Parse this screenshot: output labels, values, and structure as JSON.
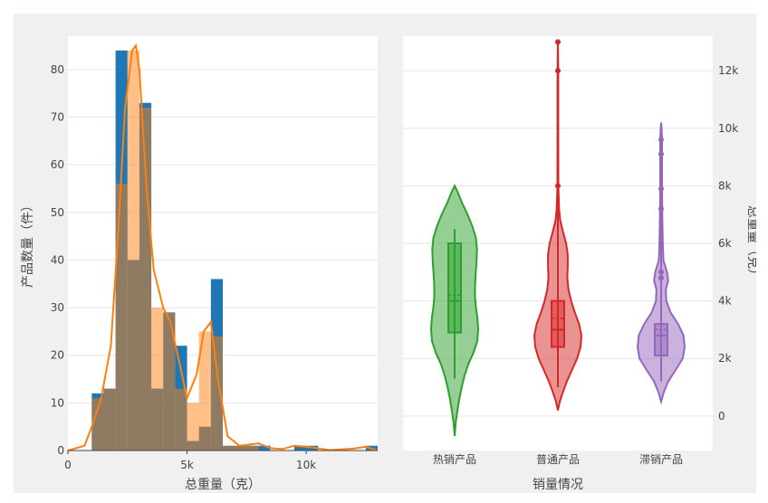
{
  "chart_data": [
    {
      "type": "bar",
      "subtype": "histogram-with-kde",
      "xlabel": "总重量（克）",
      "ylabel": "产品数量（件）",
      "xlim": [
        0,
        13000
      ],
      "ylim": [
        0,
        87
      ],
      "x_ticks": [
        {
          "v": 0,
          "label": "0"
        },
        {
          "v": 5000,
          "label": "5k"
        },
        {
          "v": 10000,
          "label": "10k"
        }
      ],
      "y_ticks": [
        0,
        10,
        20,
        30,
        40,
        50,
        60,
        70,
        80
      ],
      "bin_width": 500,
      "series": [
        {
          "color": "#1f77b4",
          "bins": [
            {
              "x0": 1000,
              "x1": 1500,
              "count": 12
            },
            {
              "x0": 1500,
              "x1": 2000,
              "count": 13
            },
            {
              "x0": 2000,
              "x1": 2500,
              "count": 84
            },
            {
              "x0": 2500,
              "x1": 3000,
              "count": 40
            },
            {
              "x0": 3000,
              "x1": 3500,
              "count": 73
            },
            {
              "x0": 3500,
              "x1": 4000,
              "count": 13
            },
            {
              "x0": 4000,
              "x1": 4500,
              "count": 29
            },
            {
              "x0": 4500,
              "x1": 5000,
              "count": 22
            },
            {
              "x0": 5000,
              "x1": 5500,
              "count": 2
            },
            {
              "x0": 5500,
              "x1": 6000,
              "count": 5
            },
            {
              "x0": 6000,
              "x1": 6500,
              "count": 36
            },
            {
              "x0": 6500,
              "x1": 7000,
              "count": 1
            },
            {
              "x0": 7000,
              "x1": 7500,
              "count": 1
            },
            {
              "x0": 7500,
              "x1": 8000,
              "count": 1
            },
            {
              "x0": 8000,
              "x1": 8500,
              "count": 1
            },
            {
              "x0": 9500,
              "x1": 10000,
              "count": 1
            },
            {
              "x0": 10000,
              "x1": 10500,
              "count": 1
            },
            {
              "x0": 12500,
              "x1": 13000,
              "count": 1
            }
          ]
        },
        {
          "color": "#ff7f0e",
          "bins": [
            {
              "x0": 1000,
              "x1": 1500,
              "count": 11
            },
            {
              "x0": 1500,
              "x1": 2000,
              "count": 13
            },
            {
              "x0": 2000,
              "x1": 2500,
              "count": 56
            },
            {
              "x0": 2500,
              "x1": 3000,
              "count": 84
            },
            {
              "x0": 3000,
              "x1": 3500,
              "count": 72
            },
            {
              "x0": 3500,
              "x1": 4000,
              "count": 30
            },
            {
              "x0": 4000,
              "x1": 4500,
              "count": 29
            },
            {
              "x0": 4500,
              "x1": 5000,
              "count": 13
            },
            {
              "x0": 5000,
              "x1": 5500,
              "count": 10
            },
            {
              "x0": 5500,
              "x1": 6000,
              "count": 25
            },
            {
              "x0": 6000,
              "x1": 6500,
              "count": 24
            },
            {
              "x0": 6500,
              "x1": 7000,
              "count": 1
            },
            {
              "x0": 7000,
              "x1": 7500,
              "count": 1
            },
            {
              "x0": 7500,
              "x1": 8000,
              "count": 1
            }
          ],
          "kde": [
            [
              0,
              0
            ],
            [
              700,
              1
            ],
            [
              1000,
              5
            ],
            [
              1400,
              11
            ],
            [
              1800,
              22
            ],
            [
              2100,
              45
            ],
            [
              2400,
              72
            ],
            [
              2700,
              84
            ],
            [
              2850,
              85
            ],
            [
              3000,
              80
            ],
            [
              3300,
              55
            ],
            [
              3600,
              38
            ],
            [
              4000,
              30
            ],
            [
              4300,
              27
            ],
            [
              4700,
              18
            ],
            [
              5000,
              11
            ],
            [
              5400,
              16
            ],
            [
              5700,
              25
            ],
            [
              6000,
              27
            ],
            [
              6300,
              15
            ],
            [
              6700,
              3
            ],
            [
              7200,
              1
            ],
            [
              8000,
              1.5
            ],
            [
              8500,
              0.5
            ],
            [
              9000,
              0.3
            ],
            [
              9500,
              1
            ],
            [
              10000,
              0.8
            ],
            [
              11000,
              0.1
            ],
            [
              12000,
              0.4
            ],
            [
              12500,
              0.8
            ],
            [
              12800,
              0.3
            ],
            [
              13000,
              0
            ]
          ]
        }
      ]
    },
    {
      "type": "violin",
      "xlabel": "销量情况",
      "ylabel": "总重量（克）",
      "ylim": [
        -1200,
        13200
      ],
      "y_ticks": [
        {
          "v": 0,
          "label": "0"
        },
        {
          "v": 2000,
          "label": "2k"
        },
        {
          "v": 4000,
          "label": "4k"
        },
        {
          "v": 6000,
          "label": "6k"
        },
        {
          "v": 8000,
          "label": "8k"
        },
        {
          "v": 10000,
          "label": "10k"
        },
        {
          "v": 12000,
          "label": "12k"
        }
      ],
      "categories": [
        "热销产品",
        "普通产品",
        "滞销产品"
      ],
      "series": [
        {
          "category": "热销产品",
          "color": "#2ca02c",
          "fill": "rgba(44,160,44,0.5)",
          "box": {
            "q1": 2900,
            "median": 4000,
            "q3": 6000,
            "mean": 4200,
            "whisker_low": 1300,
            "whisker_high": 6500
          },
          "outliers": [],
          "shape": [
            [
              -700,
              0
            ],
            [
              -200,
              0.05
            ],
            [
              200,
              0.12
            ],
            [
              600,
              0.2
            ],
            [
              1000,
              0.3
            ],
            [
              1400,
              0.42
            ],
            [
              1800,
              0.58
            ],
            [
              2200,
              0.8
            ],
            [
              2600,
              0.96
            ],
            [
              3000,
              1.0
            ],
            [
              3400,
              0.97
            ],
            [
              3800,
              0.9
            ],
            [
              4200,
              0.86
            ],
            [
              4600,
              0.87
            ],
            [
              5000,
              0.9
            ],
            [
              5400,
              0.93
            ],
            [
              5800,
              0.95
            ],
            [
              6200,
              0.9
            ],
            [
              6600,
              0.75
            ],
            [
              7000,
              0.55
            ],
            [
              7400,
              0.32
            ],
            [
              7800,
              0.12
            ],
            [
              8000,
              0
            ]
          ]
        },
        {
          "category": "普通产品",
          "color": "#d62728",
          "fill": "rgba(214,39,40,0.5)",
          "box": {
            "q1": 2400,
            "median": 3000,
            "q3": 4000,
            "mean": 3400,
            "whisker_low": 1000,
            "whisker_high": 6500
          },
          "outliers": [
            8000,
            12000,
            13000
          ],
          "shape": [
            [
              200,
              0
            ],
            [
              500,
              0.08
            ],
            [
              800,
              0.2
            ],
            [
              1200,
              0.38
            ],
            [
              1600,
              0.6
            ],
            [
              2000,
              0.82
            ],
            [
              2400,
              0.96
            ],
            [
              2800,
              1.0
            ],
            [
              3200,
              0.9
            ],
            [
              3600,
              0.72
            ],
            [
              4000,
              0.56
            ],
            [
              4400,
              0.45
            ],
            [
              4800,
              0.4
            ],
            [
              5200,
              0.42
            ],
            [
              5600,
              0.42
            ],
            [
              6000,
              0.35
            ],
            [
              6400,
              0.22
            ],
            [
              6800,
              0.1
            ],
            [
              7200,
              0.05
            ],
            [
              8000,
              0.02
            ],
            [
              10000,
              0.015
            ],
            [
              12000,
              0.015
            ],
            [
              13000,
              0
            ]
          ]
        },
        {
          "category": "滞销产品",
          "color": "#9467bd",
          "fill": "rgba(148,103,189,0.5)",
          "box": {
            "q1": 2100,
            "median": 2800,
            "q3": 3200,
            "mean": 3000,
            "whisker_low": 1200,
            "whisker_high": 3800
          },
          "outliers": [
            4800,
            5000,
            6000,
            7200,
            7900,
            9100,
            9600
          ],
          "shape": [
            [
              500,
              0
            ],
            [
              800,
              0.1
            ],
            [
              1200,
              0.3
            ],
            [
              1600,
              0.62
            ],
            [
              2000,
              0.92
            ],
            [
              2400,
              1.0
            ],
            [
              2800,
              0.95
            ],
            [
              3200,
              0.72
            ],
            [
              3600,
              0.4
            ],
            [
              4000,
              0.22
            ],
            [
              4400,
              0.2
            ],
            [
              4700,
              0.3
            ],
            [
              5000,
              0.25
            ],
            [
              5400,
              0.1
            ],
            [
              6000,
              0.07
            ],
            [
              7000,
              0.05
            ],
            [
              8000,
              0.04
            ],
            [
              9000,
              0.04
            ],
            [
              9600,
              0.04
            ],
            [
              10000,
              0.02
            ],
            [
              10200,
              0
            ]
          ]
        }
      ]
    }
  ]
}
